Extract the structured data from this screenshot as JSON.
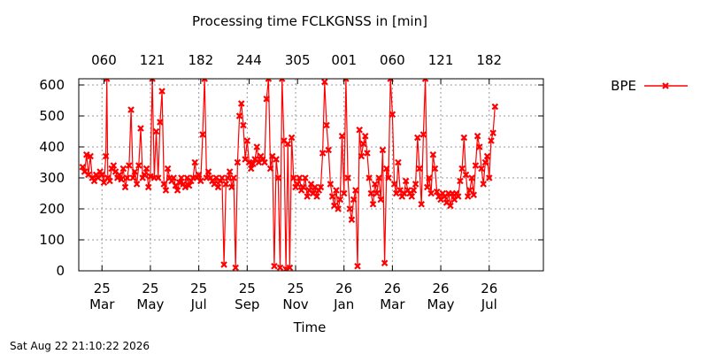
{
  "footer_timestamp": "Sat Aug 22 21:10:22 2026",
  "chart_data": {
    "type": "line",
    "title": "Processing time FCLKGNSS in [min]",
    "xlabel": "Time",
    "ylabel": "",
    "ylim": [
      0,
      620
    ],
    "xlim": [
      0,
      240
    ],
    "x_unit": "days since plot start (axis prints dates)",
    "grid": true,
    "legend_position": "top-right-outside",
    "y_ticks": [
      0,
      100,
      200,
      300,
      400,
      500,
      600
    ],
    "x_bottom_ticks": [
      {
        "x": 12,
        "label": [
          "25",
          "Mar"
        ]
      },
      {
        "x": 37,
        "label": [
          "25",
          "May"
        ]
      },
      {
        "x": 62,
        "label": [
          "25",
          "Jul"
        ]
      },
      {
        "x": 87,
        "label": [
          "25",
          "Sep"
        ]
      },
      {
        "x": 112,
        "label": [
          "25",
          "Nov"
        ]
      },
      {
        "x": 137,
        "label": [
          "26",
          "Jan"
        ]
      },
      {
        "x": 162,
        "label": [
          "26",
          "Mar"
        ]
      },
      {
        "x": 187,
        "label": [
          "26",
          "May"
        ]
      },
      {
        "x": 212,
        "label": [
          "26",
          "Jul"
        ]
      }
    ],
    "x_top_ticks": [
      {
        "x": 13,
        "label": "060"
      },
      {
        "x": 38,
        "label": "121"
      },
      {
        "x": 63,
        "label": "182"
      },
      {
        "x": 88,
        "label": "244"
      },
      {
        "x": 113,
        "label": "305"
      },
      {
        "x": 137,
        "label": "001"
      },
      {
        "x": 162,
        "label": "060"
      },
      {
        "x": 187,
        "label": "121"
      },
      {
        "x": 212,
        "label": "182"
      }
    ],
    "series": [
      {
        "name": "BPE",
        "color": "#ff0000",
        "marker": "x",
        "points": [
          [
            2,
            335
          ],
          [
            3,
            320
          ],
          [
            4,
            375
          ],
          [
            5,
            310
          ],
          [
            6,
            370
          ],
          [
            7,
            300
          ],
          [
            8,
            290
          ],
          [
            9,
            310
          ],
          [
            10,
            300
          ],
          [
            11,
            320
          ],
          [
            12,
            310
          ],
          [
            13,
            285
          ],
          [
            14,
            370
          ],
          [
            14.5,
            620
          ],
          [
            15,
            300
          ],
          [
            16,
            290
          ],
          [
            17,
            330
          ],
          [
            18,
            340
          ],
          [
            19,
            320
          ],
          [
            20,
            300
          ],
          [
            21,
            310
          ],
          [
            22,
            295
          ],
          [
            23,
            330
          ],
          [
            24,
            270
          ],
          [
            25,
            300
          ],
          [
            26,
            340
          ],
          [
            27,
            520
          ],
          [
            28,
            300
          ],
          [
            29,
            320
          ],
          [
            30,
            280
          ],
          [
            31,
            340
          ],
          [
            32,
            460
          ],
          [
            33,
            300
          ],
          [
            34,
            310
          ],
          [
            35,
            330
          ],
          [
            36,
            270
          ],
          [
            37,
            305
          ],
          [
            38,
            620
          ],
          [
            39,
            300
          ],
          [
            40,
            450
          ],
          [
            41,
            300
          ],
          [
            42,
            480
          ],
          [
            43,
            580
          ],
          [
            44,
            280
          ],
          [
            45,
            260
          ],
          [
            46,
            330
          ],
          [
            47,
            300
          ],
          [
            48,
            290
          ],
          [
            49,
            300
          ],
          [
            50,
            275
          ],
          [
            51,
            260
          ],
          [
            52,
            285
          ],
          [
            53,
            300
          ],
          [
            54,
            280
          ],
          [
            55,
            270
          ],
          [
            56,
            300
          ],
          [
            57,
            275
          ],
          [
            58,
            290
          ],
          [
            59,
            300
          ],
          [
            60,
            350
          ],
          [
            61,
            300
          ],
          [
            62,
            310
          ],
          [
            63,
            290
          ],
          [
            64,
            440
          ],
          [
            65,
            620
          ],
          [
            66,
            300
          ],
          [
            67,
            320
          ],
          [
            68,
            300
          ],
          [
            69,
            290
          ],
          [
            70,
            280
          ],
          [
            71,
            300
          ],
          [
            72,
            270
          ],
          [
            73,
            290
          ],
          [
            74,
            300
          ],
          [
            75,
            20
          ],
          [
            76,
            280
          ],
          [
            77,
            300
          ],
          [
            78,
            320
          ],
          [
            79,
            270
          ],
          [
            80,
            300
          ],
          [
            81,
            10
          ],
          [
            82,
            350
          ],
          [
            83,
            500
          ],
          [
            84,
            540
          ],
          [
            85,
            470
          ],
          [
            86,
            360
          ],
          [
            87,
            420
          ],
          [
            88,
            350
          ],
          [
            89,
            330
          ],
          [
            90,
            345
          ],
          [
            91,
            360
          ],
          [
            92,
            400
          ],
          [
            93,
            350
          ],
          [
            94,
            370
          ],
          [
            95,
            360
          ],
          [
            96,
            350
          ],
          [
            97,
            555
          ],
          [
            98,
            620
          ],
          [
            99,
            330
          ],
          [
            100,
            370
          ],
          [
            101,
            15
          ],
          [
            102,
            360
          ],
          [
            103,
            300
          ],
          [
            104,
            10
          ],
          [
            105,
            620
          ],
          [
            106,
            420
          ],
          [
            107,
            5
          ],
          [
            108,
            410
          ],
          [
            109,
            10
          ],
          [
            110,
            430
          ],
          [
            111,
            300
          ],
          [
            112,
            270
          ],
          [
            113,
            280
          ],
          [
            114,
            300
          ],
          [
            115,
            260
          ],
          [
            116,
            270
          ],
          [
            117,
            300
          ],
          [
            118,
            240
          ],
          [
            119,
            260
          ],
          [
            120,
            280
          ],
          [
            121,
            250
          ],
          [
            122,
            270
          ],
          [
            123,
            240
          ],
          [
            124,
            260
          ],
          [
            125,
            270
          ],
          [
            126,
            380
          ],
          [
            127,
            610
          ],
          [
            128,
            470
          ],
          [
            129,
            390
          ],
          [
            130,
            280
          ],
          [
            131,
            240
          ],
          [
            132,
            210
          ],
          [
            133,
            260
          ],
          [
            134,
            200
          ],
          [
            135,
            230
          ],
          [
            136,
            435
          ],
          [
            137,
            250
          ],
          [
            138,
            620
          ],
          [
            139,
            300
          ],
          [
            140,
            200
          ],
          [
            141,
            165
          ],
          [
            142,
            230
          ],
          [
            143,
            260
          ],
          [
            144,
            15
          ],
          [
            145,
            455
          ],
          [
            146,
            370
          ],
          [
            147,
            410
          ],
          [
            148,
            435
          ],
          [
            149,
            380
          ],
          [
            150,
            300
          ],
          [
            151,
            250
          ],
          [
            152,
            215
          ],
          [
            153,
            280
          ],
          [
            154,
            250
          ],
          [
            155,
            300
          ],
          [
            156,
            230
          ],
          [
            157,
            390
          ],
          [
            158,
            25
          ],
          [
            159,
            330
          ],
          [
            160,
            300
          ],
          [
            161,
            620
          ],
          [
            162,
            505
          ],
          [
            163,
            280
          ],
          [
            164,
            250
          ],
          [
            165,
            350
          ],
          [
            166,
            260
          ],
          [
            167,
            240
          ],
          [
            168,
            250
          ],
          [
            169,
            290
          ],
          [
            170,
            260
          ],
          [
            171,
            250
          ],
          [
            172,
            240
          ],
          [
            173,
            260
          ],
          [
            174,
            280
          ],
          [
            175,
            430
          ],
          [
            176,
            330
          ],
          [
            177,
            215
          ],
          [
            178,
            440
          ],
          [
            179,
            620
          ],
          [
            180,
            270
          ],
          [
            181,
            300
          ],
          [
            182,
            250
          ],
          [
            183,
            375
          ],
          [
            184,
            330
          ],
          [
            185,
            255
          ],
          [
            186,
            240
          ],
          [
            187,
            230
          ],
          [
            188,
            250
          ],
          [
            189,
            240
          ],
          [
            190,
            220
          ],
          [
            191,
            250
          ],
          [
            192,
            210
          ],
          [
            193,
            250
          ],
          [
            194,
            230
          ],
          [
            195,
            250
          ],
          [
            196,
            240
          ],
          [
            197,
            290
          ],
          [
            198,
            330
          ],
          [
            199,
            430
          ],
          [
            200,
            310
          ],
          [
            201,
            240
          ],
          [
            202,
            260
          ],
          [
            203,
            300
          ],
          [
            204,
            245
          ],
          [
            205,
            340
          ],
          [
            206,
            435
          ],
          [
            207,
            400
          ],
          [
            208,
            330
          ],
          [
            209,
            280
          ],
          [
            210,
            350
          ],
          [
            211,
            370
          ],
          [
            212,
            300
          ],
          [
            213,
            420
          ],
          [
            214,
            445
          ],
          [
            215,
            530
          ]
        ]
      }
    ]
  }
}
